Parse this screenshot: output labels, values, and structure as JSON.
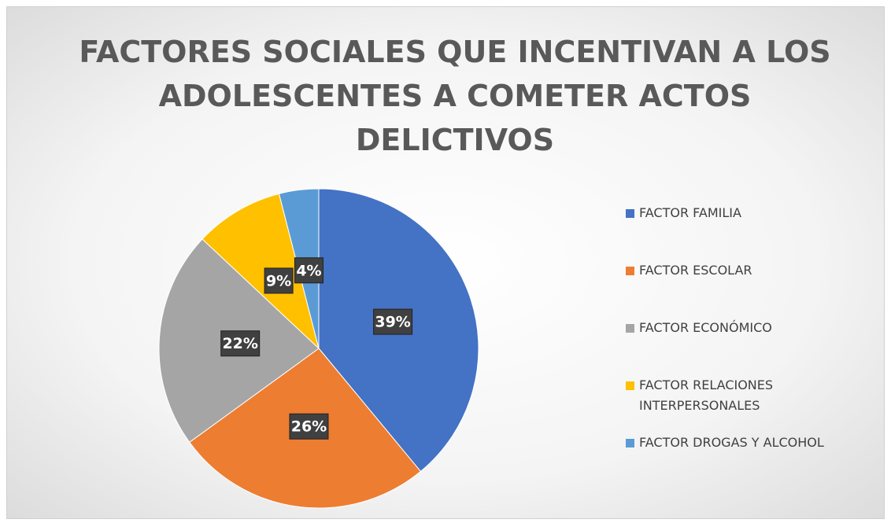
{
  "chart_data": {
    "type": "pie",
    "title": "FACTORES SOCIALES QUE INCENTIVAN A LOS ADOLESCENTES A COMETER ACTOS DELICTIVOS",
    "categories": [
      "FACTOR FAMILIA",
      "FACTOR ESCOLAR",
      "FACTOR ECONÓMICO",
      "FACTOR RELACIONES INTERPERSONALES",
      "FACTOR DROGAS Y ALCOHOL"
    ],
    "values": [
      39,
      26,
      22,
      9,
      4
    ],
    "value_labels": [
      "39%",
      "26%",
      "22%",
      "9%",
      "4%"
    ],
    "colors": [
      "#4472c4",
      "#ed7d31",
      "#a5a5a5",
      "#ffc000",
      "#5b9bd5"
    ],
    "legend": "right"
  }
}
